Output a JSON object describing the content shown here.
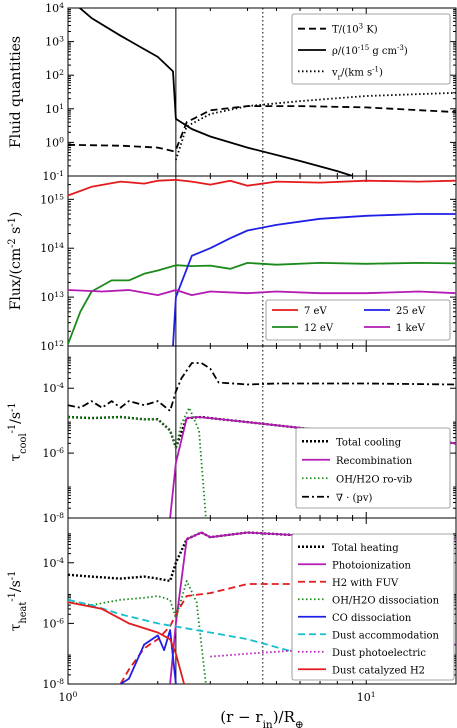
{
  "chart_data": [
    {
      "type": "line",
      "ylabel": "Fluid quantities",
      "xscale": "log",
      "yscale": "log",
      "xlim": [
        1,
        20
      ],
      "ylim": [
        0.1,
        10000
      ],
      "ytick_labels": [
        "10^-1",
        "10^0",
        "10^1",
        "10^2",
        "10^3",
        "10^4"
      ],
      "yticks": [
        0.1,
        1,
        10,
        100,
        1000,
        10000
      ],
      "legend_placement": "top-right",
      "series": [
        {
          "name": "T/(10^3 K)",
          "style": "dashed",
          "color": "#000000",
          "x": [
            1,
            1.5,
            2,
            2.25,
            2.3,
            2.5,
            3,
            4,
            6,
            10,
            20
          ],
          "y": [
            0.85,
            0.8,
            0.7,
            0.55,
            0.6,
            4,
            9,
            12,
            12,
            11,
            8
          ]
        },
        {
          "name": "ρ/(10^-15 g cm^-3)",
          "style": "solid",
          "color": "#000000",
          "x": [
            1,
            1.2,
            1.5,
            1.8,
            2,
            2.25,
            2.3,
            2.6,
            3,
            4,
            6,
            8,
            9
          ],
          "y": [
            20000,
            5000,
            1500,
            600,
            350,
            130,
            5,
            2.5,
            1.5,
            0.7,
            0.28,
            0.14,
            0.1
          ]
        },
        {
          "name": "v_r/(km s^-1)",
          "style": "dotted",
          "color": "#000000",
          "x": [
            2.3,
            2.5,
            3,
            4,
            6,
            10,
            20
          ],
          "y": [
            0.3,
            3,
            7,
            12,
            17,
            24,
            30
          ]
        }
      ],
      "vlines": [
        {
          "x": 2.3,
          "style": "solid"
        },
        {
          "x": 4.5,
          "style": "dotted"
        }
      ]
    },
    {
      "type": "line",
      "ylabel": "Flux/(cm^-2 s^-1)",
      "xscale": "log",
      "yscale": "log",
      "xlim": [
        1,
        20
      ],
      "ylim": [
        1000000000000.0,
        3000000000000000.0
      ],
      "ytick_labels": [
        "10^12",
        "10^13",
        "10^14",
        "10^15"
      ],
      "yticks": [
        1000000000000.0,
        10000000000000.0,
        100000000000000.0,
        1000000000000000.0
      ],
      "legend_placement": "lower-right",
      "series": [
        {
          "name": "7 eV",
          "color": "#e41a1c",
          "x": [
            1,
            1.2,
            1.5,
            1.8,
            2,
            2.3,
            2.6,
            3,
            3.5,
            4,
            5,
            7,
            10,
            15,
            20
          ],
          "y": [
            1200000000000000.0,
            1800000000000000.0,
            2300000000000000.0,
            2100000000000000.0,
            2400000000000000.0,
            2500000000000000.0,
            2300000000000000.0,
            2000000000000000.0,
            2400000000000000.0,
            1900000000000000.0,
            2300000000000000.0,
            2200000000000000.0,
            2400000000000000.0,
            2300000000000000.0,
            2400000000000000.0
          ]
        },
        {
          "name": "12 eV",
          "color": "#1a8a1a",
          "x": [
            1,
            1.1,
            1.2,
            1.4,
            1.6,
            1.8,
            2,
            2.3,
            2.6,
            3,
            3.5,
            4,
            5,
            7,
            10,
            15,
            20
          ],
          "y": [
            1100000000000.0,
            5000000000000.0,
            13000000000000.0,
            22000000000000.0,
            22000000000000.0,
            30000000000000.0,
            35000000000000.0,
            45000000000000.0,
            43000000000000.0,
            44000000000000.0,
            38000000000000.0,
            50000000000000.0,
            46000000000000.0,
            50000000000000.0,
            48000000000000.0,
            50000000000000.0,
            49000000000000.0
          ]
        },
        {
          "name": "25 eV",
          "color": "#1f1fe6",
          "x": [
            2.25,
            2.3,
            2.6,
            3,
            3.5,
            4,
            5,
            7,
            10,
            15,
            20
          ],
          "y": [
            1000000000000.0,
            10000000000000.0,
            70000000000000.0,
            100000000000000.0,
            160000000000000.0,
            230000000000000.0,
            300000000000000.0,
            400000000000000.0,
            460000000000000.0,
            500000000000000.0,
            500000000000000.0
          ]
        },
        {
          "name": "1 keV",
          "color": "#b31ab3",
          "x": [
            1,
            1.3,
            1.6,
            2,
            2.3,
            2.6,
            3,
            4,
            5,
            7,
            10,
            15,
            20
          ],
          "y": [
            14000000000000.0,
            13000000000000.0,
            14000000000000.0,
            11000000000000.0,
            14000000000000.0,
            11000000000000.0,
            13000000000000.0,
            12000000000000.0,
            13000000000000.0,
            12000000000000.0,
            12000000000000.0,
            13000000000000.0,
            12000000000000.0
          ]
        }
      ],
      "vlines": [
        {
          "x": 2.3,
          "style": "solid"
        },
        {
          "x": 4.5,
          "style": "dotted"
        }
      ]
    },
    {
      "type": "line",
      "ylabel": "τ_cool^-1/s^-1",
      "xscale": "log",
      "yscale": "log",
      "xlim": [
        1,
        20
      ],
      "ylim": [
        1e-08,
        0.002
      ],
      "ytick_labels": [
        "10^-8",
        "10^-6",
        "10^-4"
      ],
      "yticks": [
        1e-08,
        1e-06,
        0.0001
      ],
      "legend_placement": "lower-right",
      "series": [
        {
          "name": "Total cooling",
          "style": "dotted-thick",
          "color": "#000000",
          "x": [
            1,
            1.2,
            1.5,
            1.8,
            2,
            2.2,
            2.3,
            2.5,
            2.8,
            3,
            4,
            6,
            10,
            20
          ],
          "y": [
            1.3e-05,
            1.2e-05,
            1.3e-05,
            1.1e-05,
            1.1e-05,
            5e-06,
            1.5e-06,
            1.2e-05,
            1.3e-05,
            1.2e-05,
            9e-06,
            6e-06,
            3.5e-06,
            2e-06
          ]
        },
        {
          "name": "Recombination",
          "style": "solid",
          "color": "#b31ab3",
          "x": [
            2.2,
            2.3,
            2.5,
            2.7,
            3,
            4,
            6,
            10,
            20
          ],
          "y": [
            1e-08,
            5e-07,
            1.2e-05,
            1.3e-05,
            1.2e-05,
            9e-06,
            6e-06,
            3.5e-06,
            2e-06
          ]
        },
        {
          "name": "OH/H2O ro-vib",
          "style": "dotted",
          "color": "#1a8a1a",
          "x": [
            1,
            1.2,
            1.5,
            1.8,
            2,
            2.2,
            2.3,
            2.4,
            2.55,
            2.75,
            2.9
          ],
          "y": [
            1.3e-05,
            1.2e-05,
            1.3e-05,
            1.1e-05,
            1.1e-05,
            5e-06,
            1.5e-06,
            8e-06,
            2.5e-05,
            5e-06,
            1e-08
          ]
        },
        {
          "name": "∇ · (pv)",
          "style": "dashdot",
          "color": "#000000",
          "x": [
            1,
            1.1,
            1.2,
            1.3,
            1.4,
            1.5,
            1.6,
            1.8,
            2,
            2.2,
            2.3,
            2.4,
            2.6,
            2.8,
            3,
            3.2,
            4,
            5,
            7,
            10,
            20
          ],
          "y": [
            3e-05,
            2.5e-05,
            4e-05,
            2.5e-05,
            4e-05,
            2.5e-05,
            4e-05,
            3e-05,
            4e-05,
            2e-05,
            8e-05,
            0.0002,
            0.0006,
            0.0006,
            0.0004,
            0.00015,
            0.00013,
            0.00014,
            0.00014,
            0.00014,
            0.00013
          ]
        }
      ],
      "vlines": [
        {
          "x": 2.3,
          "style": "solid"
        },
        {
          "x": 4.5,
          "style": "dotted"
        }
      ]
    },
    {
      "type": "line",
      "ylabel": "τ_heat^-1/s^-1",
      "xlabel": "(r − r_in)/R_⊕",
      "xscale": "log",
      "yscale": "log",
      "xlim": [
        1,
        20
      ],
      "ylim": [
        1e-08,
        0.003
      ],
      "xticks": [
        1,
        10
      ],
      "xtick_labels": [
        "10^0",
        "10^1"
      ],
      "ytick_labels": [
        "10^-8",
        "10^-6",
        "10^-4"
      ],
      "yticks": [
        1e-08,
        1e-06,
        0.0001
      ],
      "legend_placement": "top-right",
      "series": [
        {
          "name": "Total heating",
          "style": "dotted-thick",
          "color": "#000000",
          "x": [
            1,
            1.2,
            1.5,
            1.8,
            2,
            2.2,
            2.3,
            2.5,
            2.8,
            3,
            4,
            6,
            10,
            20
          ],
          "y": [
            4e-05,
            3.5e-05,
            3e-05,
            3.5e-05,
            3e-05,
            2.5e-05,
            0.0001,
            0.0006,
            0.001,
            0.0007,
            0.001,
            0.0008,
            0.0007,
            0.0006
          ]
        },
        {
          "name": "Photoionization",
          "style": "solid",
          "color": "#b31ab3",
          "x": [
            2.2,
            2.3,
            2.5,
            2.8,
            3,
            4,
            6,
            10,
            20
          ],
          "y": [
            1e-08,
            1e-06,
            0.0006,
            0.001,
            0.0007,
            0.001,
            0.0008,
            0.0007,
            0.0006
          ]
        },
        {
          "name": "H2 with FUV",
          "style": "dashed",
          "color": "#e41a1c",
          "x": [
            1.5,
            1.6,
            1.8,
            2,
            2.2,
            2.3,
            2.5,
            3,
            4,
            6,
            10,
            20
          ],
          "y": [
            1e-08,
            3e-08,
            1.5e-07,
            3e-07,
            8e-07,
            2e-06,
            8e-06,
            1e-05,
            2e-05,
            2e-05,
            1e-05,
            5e-06
          ]
        },
        {
          "name": "OH/H2O dissociation",
          "style": "dotted",
          "color": "#1a8a1a",
          "x": [
            1,
            1.2,
            1.5,
            1.8,
            2,
            2.2,
            2.3,
            2.5,
            2.7,
            2.9
          ],
          "y": [
            5e-06,
            4e-06,
            6e-06,
            7e-06,
            8e-06,
            6e-06,
            1.5e-06,
            2.5e-05,
            5e-06,
            1e-08
          ]
        },
        {
          "name": "CO dissociation",
          "style": "solid",
          "color": "#1f1fe6",
          "x": [
            1.5,
            1.6,
            1.8,
            2,
            2.1,
            2.2,
            2.3
          ],
          "y": [
            1e-08,
            1.5e-08,
            2e-07,
            4e-07,
            1.3e-07,
            6e-07,
            1e-08
          ]
        },
        {
          "name": "Dust accommodation",
          "style": "dashed",
          "color": "#17becf",
          "x": [
            1,
            1.2,
            1.5,
            2,
            3,
            4,
            6,
            10,
            20
          ],
          "y": [
            6e-06,
            4e-06,
            2e-06,
            1e-06,
            5e-07,
            3e-07,
            1e-07,
            4e-08,
            2e-08
          ]
        },
        {
          "name": "Dust photoelectric",
          "style": "dotted",
          "color": "#b31ab3",
          "x": [
            3,
            4,
            6,
            10,
            20
          ],
          "y": [
            8e-08,
            1e-07,
            1.3e-07,
            1.6e-07,
            2e-07
          ]
        },
        {
          "name": "Dust catalyzed H2",
          "style": "solid",
          "color": "#e41a1c",
          "x": [
            1,
            1.3,
            1.6,
            2,
            2.2,
            2.3,
            2.45
          ],
          "y": [
            5e-06,
            3e-06,
            1e-06,
            5e-07,
            3e-07,
            1e-07,
            1e-08
          ]
        }
      ],
      "vlines": [
        {
          "x": 2.3,
          "style": "solid"
        },
        {
          "x": 4.5,
          "style": "dotted"
        }
      ]
    }
  ]
}
